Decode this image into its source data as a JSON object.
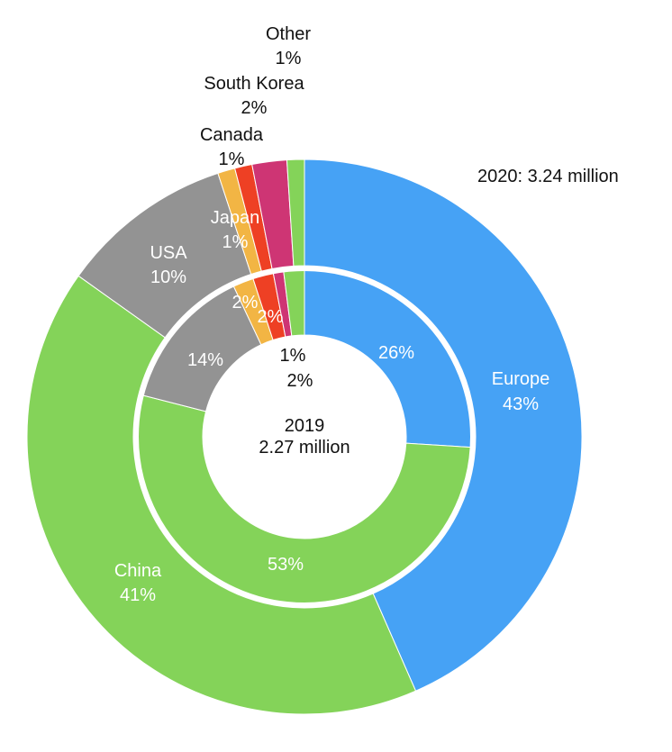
{
  "chart_data": {
    "type": "pie",
    "variant": "double-donut",
    "title": "",
    "outer": {
      "label": "2020: 3.24 million",
      "slices": [
        {
          "name": "Europe",
          "value": 43,
          "label": "43%",
          "color": "#46A2F5"
        },
        {
          "name": "China",
          "value": 41,
          "label": "41%",
          "color": "#84D359"
        },
        {
          "name": "USA",
          "value": 10,
          "label": "10%",
          "color": "#939393"
        },
        {
          "name": "Japan",
          "value": 1,
          "label": "1%",
          "color": "#F2B544"
        },
        {
          "name": "Canada",
          "value": 1,
          "label": "1%",
          "color": "#EE4024"
        },
        {
          "name": "South Korea",
          "value": 2,
          "label": "2%",
          "color": "#CE3574"
        },
        {
          "name": "Other",
          "value": 1,
          "label": "1%",
          "color": "#84D359"
        }
      ]
    },
    "inner": {
      "year": "2019",
      "total": "2.27 million",
      "slices": [
        {
          "name": "Europe",
          "value": 26,
          "label": "26%",
          "color": "#46A2F5"
        },
        {
          "name": "China",
          "value": 53,
          "label": "53%",
          "color": "#84D359"
        },
        {
          "name": "USA",
          "value": 14,
          "label": "14%",
          "color": "#939393"
        },
        {
          "name": "Japan",
          "value": 2,
          "label": "2%",
          "color": "#F2B544"
        },
        {
          "name": "Canada",
          "value": 2,
          "label": "2%",
          "color": "#EE4024"
        },
        {
          "name": "South Korea",
          "value": 1,
          "label": "1%",
          "color": "#CE3574"
        },
        {
          "name": "Other",
          "value": 2,
          "label": "2%",
          "color": "#84D359"
        }
      ]
    }
  }
}
